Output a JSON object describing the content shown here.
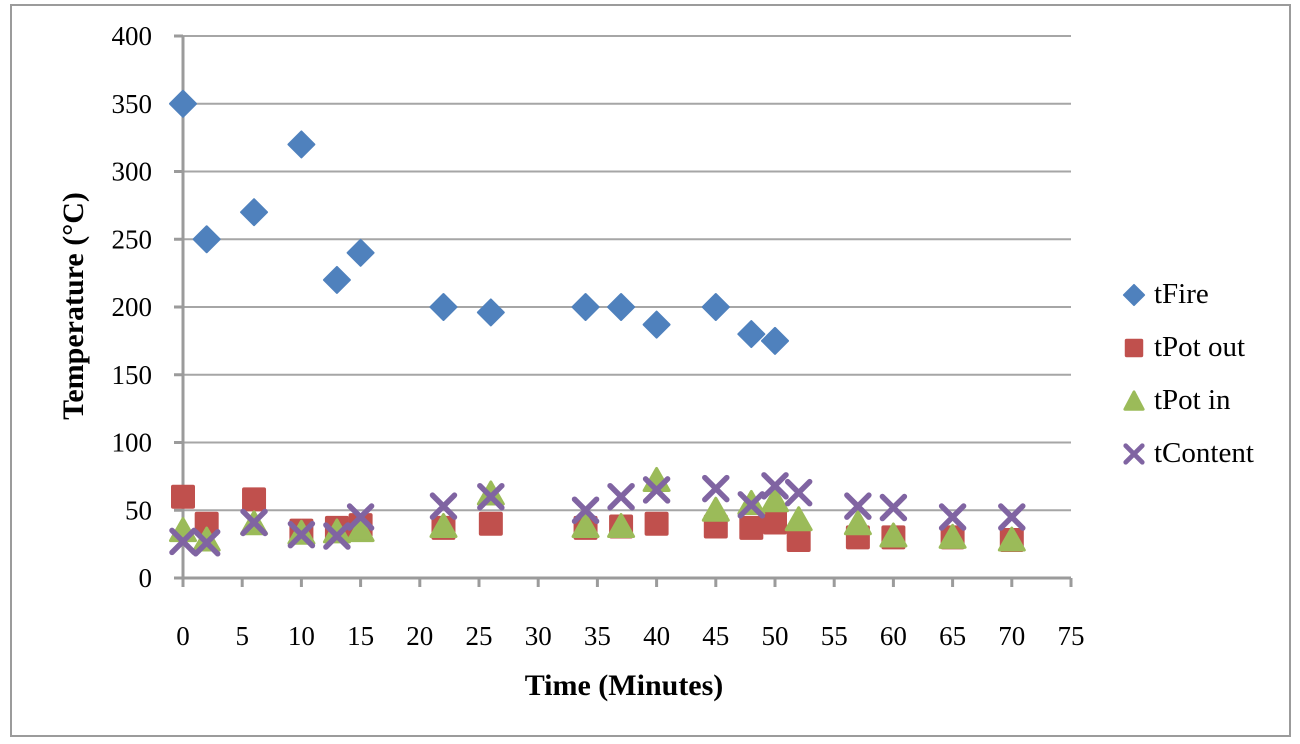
{
  "chart_data": {
    "type": "scatter",
    "title": "",
    "xlabel": "Time (Minutes)",
    "ylabel": "Temperature (°C)",
    "xlim": [
      0,
      75
    ],
    "ylim": [
      0,
      400
    ],
    "xticks": [
      0,
      5,
      10,
      15,
      20,
      25,
      30,
      35,
      40,
      45,
      50,
      55,
      60,
      65,
      70,
      75
    ],
    "yticks": [
      0,
      50,
      100,
      150,
      200,
      250,
      300,
      350,
      400
    ],
    "grid": "horizontal",
    "legend_position": "right",
    "series": [
      {
        "name": "tFire",
        "marker": "diamond",
        "color": "#4F81BD",
        "points": [
          [
            0,
            350
          ],
          [
            2,
            250
          ],
          [
            6,
            270
          ],
          [
            10,
            320
          ],
          [
            13,
            220
          ],
          [
            15,
            240
          ],
          [
            22,
            200
          ],
          [
            26,
            196
          ],
          [
            34,
            200
          ],
          [
            37,
            200
          ],
          [
            40,
            187
          ],
          [
            45,
            200
          ],
          [
            48,
            180
          ],
          [
            50,
            175
          ]
        ]
      },
      {
        "name": "tPot out",
        "marker": "square",
        "color": "#C0504D",
        "points": [
          [
            0,
            60
          ],
          [
            2,
            40
          ],
          [
            6,
            58
          ],
          [
            10,
            35
          ],
          [
            13,
            37
          ],
          [
            15,
            39
          ],
          [
            22,
            37
          ],
          [
            26,
            40
          ],
          [
            34,
            37
          ],
          [
            37,
            38
          ],
          [
            40,
            40
          ],
          [
            45,
            38
          ],
          [
            48,
            37
          ],
          [
            50,
            41
          ],
          [
            52,
            28
          ],
          [
            57,
            30
          ],
          [
            60,
            30
          ],
          [
            65,
            30
          ],
          [
            70,
            28
          ]
        ]
      },
      {
        "name": "tPot in",
        "marker": "triangle",
        "color": "#9BBB59",
        "points": [
          [
            0,
            35
          ],
          [
            2,
            28
          ],
          [
            6,
            40
          ],
          [
            10,
            33
          ],
          [
            13,
            34
          ],
          [
            15,
            35
          ],
          [
            22,
            38
          ],
          [
            26,
            62
          ],
          [
            34,
            38
          ],
          [
            37,
            38
          ],
          [
            40,
            72
          ],
          [
            45,
            50
          ],
          [
            48,
            55
          ],
          [
            50,
            57
          ],
          [
            52,
            43
          ],
          [
            57,
            40
          ],
          [
            60,
            31
          ],
          [
            65,
            30
          ],
          [
            70,
            28
          ]
        ]
      },
      {
        "name": "tContent",
        "marker": "x",
        "color": "#8064A2",
        "points": [
          [
            0,
            27
          ],
          [
            2,
            26
          ],
          [
            6,
            41
          ],
          [
            10,
            32
          ],
          [
            13,
            31
          ],
          [
            15,
            45
          ],
          [
            22,
            53
          ],
          [
            26,
            60
          ],
          [
            34,
            50
          ],
          [
            37,
            60
          ],
          [
            40,
            65
          ],
          [
            45,
            66
          ],
          [
            48,
            54
          ],
          [
            50,
            68
          ],
          [
            52,
            63
          ],
          [
            57,
            53
          ],
          [
            60,
            52
          ],
          [
            65,
            45
          ],
          [
            70,
            45
          ]
        ]
      }
    ],
    "colors": {
      "grid": "#A6A6A6",
      "axis": "#9B9B9B",
      "frame": "#9B9B9B",
      "text": "#000000"
    }
  }
}
